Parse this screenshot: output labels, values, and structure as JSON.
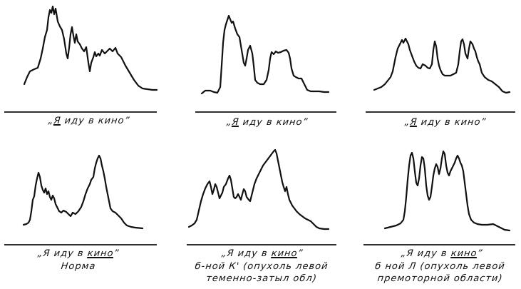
{
  "panels": [
    {
      "caption_parts": [
        "„",
        "Я",
        " иду в кино”"
      ],
      "caption_underline": [
        false,
        true,
        false
      ],
      "subcaption_lines": []
    },
    {
      "caption_parts": [
        "„",
        "Я",
        " иду в кино”"
      ],
      "caption_underline": [
        false,
        true,
        false
      ],
      "subcaption_lines": []
    },
    {
      "caption_parts": [
        "„",
        "Я",
        " иду в кино”"
      ],
      "caption_underline": [
        false,
        true,
        false
      ],
      "subcaption_lines": []
    },
    {
      "caption_parts": [
        "„Я иду в ",
        "кино",
        "”"
      ],
      "caption_underline": [
        false,
        true,
        false
      ],
      "subcaption_lines": [
        "Норма"
      ]
    },
    {
      "caption_parts": [
        "„Я иду в ",
        "кино",
        "”"
      ],
      "caption_underline": [
        false,
        true,
        false
      ],
      "subcaption_lines": [
        "б-ной К' (опухоль левой",
        "теменно-затыл обл)"
      ]
    },
    {
      "caption_parts": [
        "„Я иду в ",
        "кино",
        "”"
      ],
      "caption_underline": [
        false,
        true,
        false
      ],
      "subcaption_lines": [
        "б ной Л (опухоль левой",
        "премоторной области)"
      ]
    }
  ]
}
